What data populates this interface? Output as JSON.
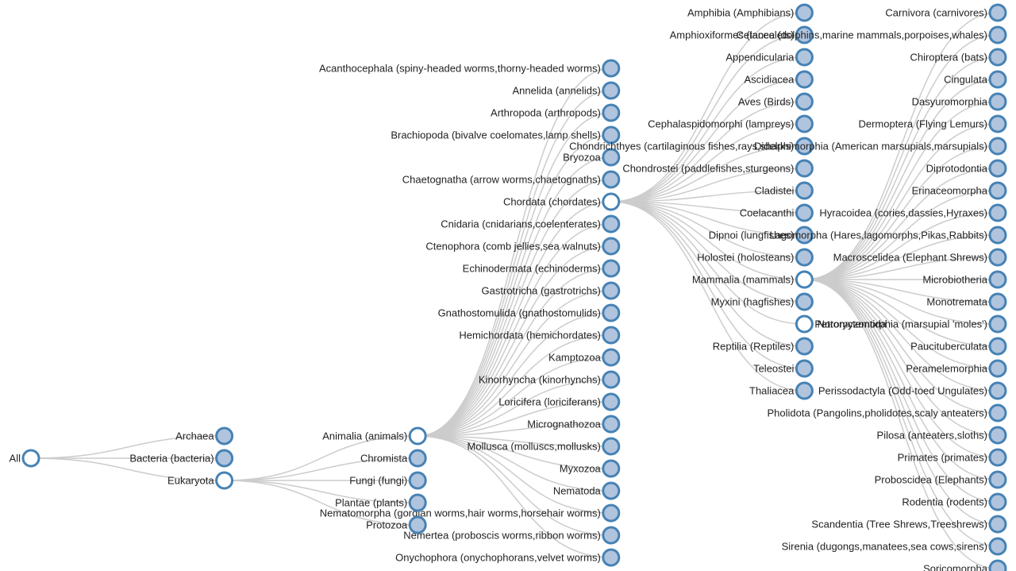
{
  "tree": {
    "label": "All",
    "children": [
      {
        "label": "Archaea"
      },
      {
        "label": "Bacteria (bacteria)"
      },
      {
        "label": "Eukaryota",
        "children": [
          {
            "label": "Animalia (animals)",
            "children": [
              {
                "label": "Acanthocephala (spiny-headed worms,thorny-headed worms)"
              },
              {
                "label": "Annelida (annelids)"
              },
              {
                "label": "Arthropoda (arthropods)"
              },
              {
                "label": "Brachiopoda (bivalve coelomates,lamp shells)"
              },
              {
                "label": "Bryozoa"
              },
              {
                "label": "Chaetognatha (arrow worms,chaetognaths)"
              },
              {
                "label": "Chordata (chordates)",
                "children": [
                  {
                    "label": "Amphibia (Amphibians)"
                  },
                  {
                    "label": "Amphioxiformes (lancelets)"
                  },
                  {
                    "label": "Appendicularia"
                  },
                  {
                    "label": "Ascidiacea"
                  },
                  {
                    "label": "Aves (Birds)"
                  },
                  {
                    "label": "Cephalaspidomorphi (lampreys)"
                  },
                  {
                    "label": "Chondrichthyes (cartilaginous fishes,rays,sharks)"
                  },
                  {
                    "label": "Chondrostei (paddlefishes,sturgeons)"
                  },
                  {
                    "label": "Cladistei"
                  },
                  {
                    "label": "Coelacanthi"
                  },
                  {
                    "label": "Dipnoi (lungfishes)"
                  },
                  {
                    "label": "Holostei (holosteans)"
                  },
                  {
                    "label": "Mammalia (mammals)",
                    "children": [
                      {
                        "label": "Carnivora (carnivores)"
                      },
                      {
                        "label": "Cetacea (dolphins,marine mammals,porpoises,whales)"
                      },
                      {
                        "label": "Chiroptera (bats)"
                      },
                      {
                        "label": "Cingulata"
                      },
                      {
                        "label": "Dasyuromorphia"
                      },
                      {
                        "label": "Dermoptera (Flying Lemurs)"
                      },
                      {
                        "label": "Didelphimorphia (American marsupials,marsupials)"
                      },
                      {
                        "label": "Diprotodontia"
                      },
                      {
                        "label": "Erinaceomorpha"
                      },
                      {
                        "label": "Hyracoidea (cories,dassies,Hyraxes)"
                      },
                      {
                        "label": "Lagomorpha (Hares,lagomorphs,Pikas,Rabbits)"
                      },
                      {
                        "label": "Macroscelidea (Elephant Shrews)"
                      },
                      {
                        "label": "Microbiotheria"
                      },
                      {
                        "label": "Monotremata"
                      },
                      {
                        "label": "Notoryctemorphia (marsupial 'moles')"
                      },
                      {
                        "label": "Paucituberculata"
                      },
                      {
                        "label": "Peramelemorphia"
                      },
                      {
                        "label": "Perissodactyla (Odd-toed Ungulates)"
                      },
                      {
                        "label": "Pholidota (Pangolins,pholidotes,scaly anteaters)"
                      },
                      {
                        "label": "Pilosa (anteaters,sloths)"
                      },
                      {
                        "label": "Primates (primates)"
                      },
                      {
                        "label": "Proboscidea (Elephants)"
                      },
                      {
                        "label": "Rodentia (rodents)"
                      },
                      {
                        "label": "Scandentia (Tree Shrews,Treeshrews)"
                      },
                      {
                        "label": "Sirenia (dugongs,manatees,sea cows,sirens)"
                      },
                      {
                        "label": "Soricomorpha"
                      }
                    ]
                  },
                  {
                    "label": "Myxini (hagfishes)"
                  },
                  {
                    "label": "Petromyzontida",
                    "expanded": true
                  },
                  {
                    "label": "Reptilia (Reptiles)"
                  },
                  {
                    "label": "Teleostei"
                  },
                  {
                    "label": "Thaliacea"
                  }
                ]
              },
              {
                "label": "Cnidaria (cnidarians,coelenterates)"
              },
              {
                "label": "Ctenophora (comb jellies,sea walnuts)"
              },
              {
                "label": "Echinodermata (echinoderms)"
              },
              {
                "label": "Gastrotricha (gastrotrichs)"
              },
              {
                "label": "Gnathostomulida (gnathostomulids)"
              },
              {
                "label": "Hemichordata (hemichordates)"
              },
              {
                "label": "Kamptozoa"
              },
              {
                "label": "Kinorhyncha (kinorhynchs)"
              },
              {
                "label": "Loricifera (loriciferans)"
              },
              {
                "label": "Micrognathozoa"
              },
              {
                "label": "Mollusca (molluscs,mollusks)"
              },
              {
                "label": "Myxozoa"
              },
              {
                "label": "Nematoda"
              },
              {
                "label": "Nematomorpha (gordian worms,hair worms,horsehair worms)"
              },
              {
                "label": "Nemertea (proboscis worms,ribbon worms)"
              },
              {
                "label": "Onychophora (onychophorans,velvet worms)"
              }
            ]
          },
          {
            "label": "Chromista"
          },
          {
            "label": "Fungi (fungi)"
          },
          {
            "label": "Plantae (plants)"
          },
          {
            "label": "Protozoa"
          }
        ]
      }
    ]
  }
}
